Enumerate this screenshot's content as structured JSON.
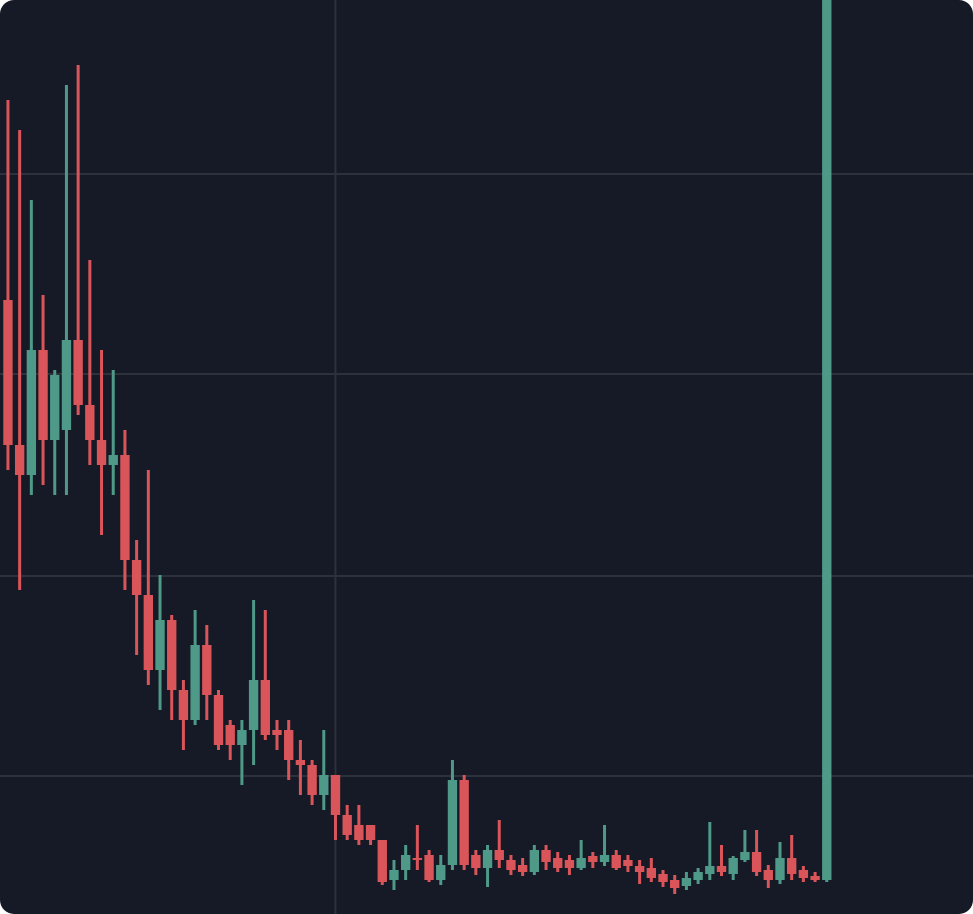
{
  "chart_data": {
    "type": "candlestick",
    "x": [
      0,
      1,
      2,
      3,
      4,
      5,
      6,
      7,
      8,
      9,
      10,
      11,
      12,
      13,
      14,
      15,
      16,
      17,
      18,
      19,
      20,
      21,
      22,
      23,
      24,
      25,
      26,
      27,
      28,
      29,
      30,
      31,
      32,
      33,
      34,
      35,
      36,
      37,
      38,
      39,
      40,
      41,
      42,
      43,
      44,
      45,
      46,
      47,
      48,
      49,
      50,
      51,
      52,
      53,
      54,
      55,
      56,
      57,
      58,
      59,
      60,
      61,
      62,
      63,
      64,
      65,
      66,
      67,
      68,
      69,
      70
    ],
    "open": [
      614,
      469,
      439,
      564,
      474,
      484,
      574,
      509,
      474,
      449,
      459,
      354,
      319,
      244,
      294,
      224,
      194,
      269,
      219,
      189,
      169,
      184,
      234,
      184,
      184,
      154,
      149,
      119,
      139,
      99,
      89,
      89,
      74,
      34,
      44,
      56,
      59,
      34,
      49,
      134,
      59,
      46,
      64,
      54,
      49,
      42,
      64,
      56,
      54,
      46,
      58,
      52,
      59,
      54,
      48,
      46,
      40,
      34,
      28,
      34,
      40,
      48,
      40,
      54,
      62,
      44,
      34,
      56,
      44,
      38,
      34
    ],
    "high": [
      814,
      784,
      714,
      619,
      544,
      829,
      849,
      654,
      564,
      544,
      484,
      374,
      444,
      339,
      299,
      234,
      304,
      289,
      224,
      194,
      194,
      314,
      304,
      194,
      194,
      174,
      154,
      184,
      139,
      109,
      109,
      89,
      74,
      54,
      69,
      89,
      64,
      59,
      154,
      139,
      64,
      69,
      94,
      59,
      56,
      69,
      69,
      62,
      59,
      74,
      62,
      89,
      64,
      59,
      54,
      56,
      44,
      39,
      42,
      46,
      92,
      69,
      58,
      84,
      84,
      49,
      72,
      79,
      48,
      42,
      918
    ],
    "low": [
      444,
      324,
      419,
      429,
      419,
      419,
      499,
      449,
      379,
      419,
      324,
      259,
      229,
      204,
      194,
      164,
      189,
      194,
      164,
      154,
      129,
      149,
      174,
      164,
      134,
      119,
      109,
      104,
      74,
      74,
      69,
      69,
      29,
      24,
      34,
      44,
      32,
      29,
      44,
      44,
      39,
      27,
      46,
      39,
      38,
      39,
      44,
      42,
      39,
      44,
      46,
      48,
      44,
      42,
      30,
      32,
      27,
      20,
      24,
      30,
      34,
      38,
      34,
      52,
      38,
      26,
      30,
      34,
      32,
      32,
      32
    ],
    "close": [
      469,
      439,
      564,
      474,
      539,
      574,
      509,
      474,
      449,
      459,
      354,
      319,
      244,
      294,
      224,
      194,
      269,
      219,
      169,
      169,
      184,
      234,
      179,
      179,
      154,
      149,
      119,
      139,
      99,
      79,
      74,
      74,
      32,
      44,
      59,
      54,
      34,
      49,
      134,
      49,
      46,
      64,
      54,
      44,
      42,
      64,
      52,
      46,
      46,
      56,
      52,
      59,
      46,
      48,
      42,
      36,
      32,
      26,
      36,
      42,
      48,
      42,
      56,
      62,
      42,
      34,
      56,
      40,
      36,
      34,
      918
    ],
    "up_color": "#4e9987",
    "down_color": "#d9555a",
    "xlim": [
      -0.68,
      82.5
    ],
    "ylim": [
      0,
      914
    ],
    "xticks": [
      28
    ],
    "yticks": [
      138,
      338,
      540,
      740
    ],
    "grid": true
  }
}
